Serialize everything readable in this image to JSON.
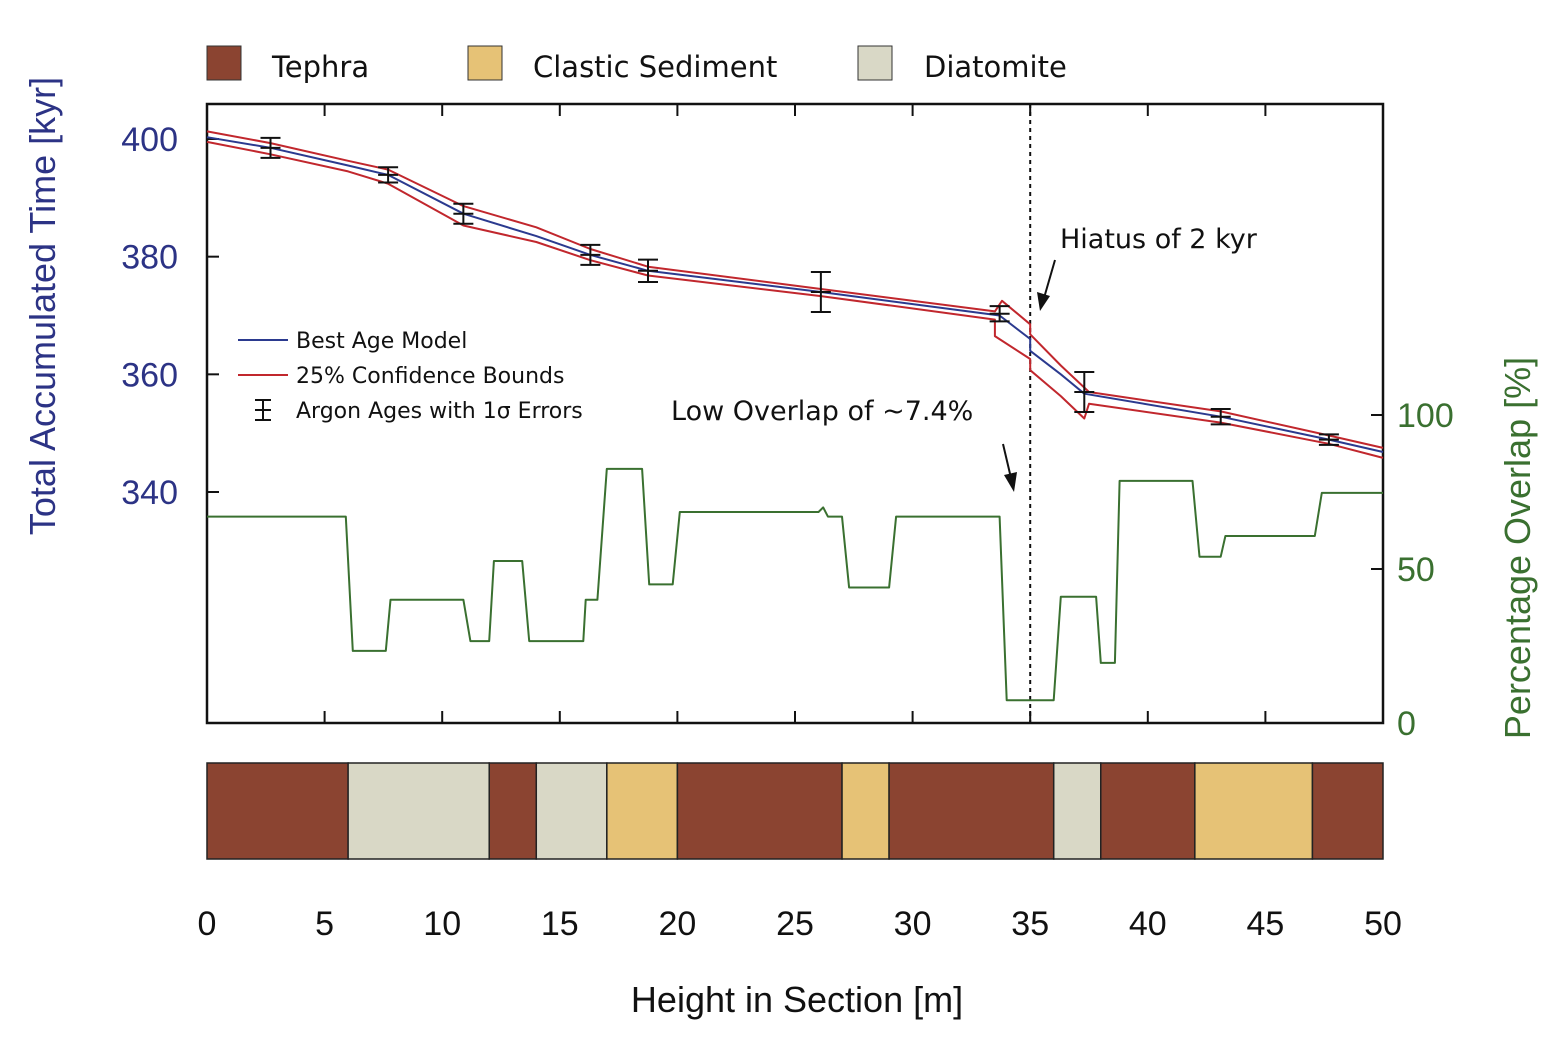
{
  "chart_data": {
    "type": "line",
    "title": "",
    "xlabel": "Height in Section [m]",
    "ylabel_left": "Total Accumulated Time [kyr]",
    "ylabel_right": "Percentage Overlap [%]",
    "xlim": [
      0,
      50
    ],
    "ylim_left": [
      326.5,
      405.5
    ],
    "ylim_right": [
      0,
      200
    ],
    "x_ticks": [
      0,
      5,
      10,
      15,
      20,
      25,
      30,
      35,
      40,
      45,
      50
    ],
    "x_tick_labels": [
      "0",
      "5",
      "10",
      "15",
      "20",
      "25",
      "30",
      "35",
      "40",
      "45",
      "50"
    ],
    "y_left_ticks": [
      400,
      380,
      360,
      340
    ],
    "y_left_tick_labels": [
      "400",
      "380",
      "360",
      "340"
    ],
    "y_right_ticks": [
      0,
      50,
      100
    ],
    "y_right_tick_labels": [
      "0",
      "50",
      "100"
    ],
    "grid": false,
    "colors": {
      "best_model": "#2b3a8f",
      "bounds": "#c1272d",
      "errorbars": "#111111",
      "overlap": "#3a7030",
      "left_axis": "#2c3385",
      "right_axis": "#3a7030",
      "tephra": "#8b4431",
      "clastic": "#e6c276",
      "diatomite": "#d9d8c6"
    },
    "legend": {
      "placement": "middle-left",
      "entries": [
        {
          "label": "Best Age Model",
          "kind": "line",
          "color_key": "best_model"
        },
        {
          "label": "25% Confidence Bounds",
          "kind": "line",
          "color_key": "bounds"
        },
        {
          "label": "Argon Ages with 1σ Errors",
          "kind": "errorbar",
          "color_key": "errorbars"
        }
      ]
    },
    "series": [
      {
        "name": "Best Age Model",
        "axis": "left",
        "x": [
          0,
          2.7,
          6,
          7.7,
          10.9,
          14,
          16.3,
          18.75,
          26.1,
          33.7,
          35,
          35,
          36.3,
          37.3,
          43.1,
          47.7,
          50
        ],
        "y": [
          400.3,
          398.5,
          395.5,
          393.9,
          387.3,
          383.5,
          380.3,
          377.6,
          374.0,
          370.0,
          366.0,
          364.0,
          360.0,
          356.7,
          352.8,
          348.9,
          346.8
        ]
      },
      {
        "name": "25% Confidence Bounds (upper)",
        "axis": "left",
        "x": [
          0,
          2.7,
          6,
          7.7,
          10.9,
          14,
          16.3,
          18.75,
          26.1,
          33.5,
          33.8,
          35,
          35,
          36.3,
          37.5,
          43.1,
          47.7,
          50
        ],
        "y": [
          401.3,
          399.3,
          396.3,
          394.8,
          388.6,
          385,
          381.3,
          378.3,
          374.5,
          370.7,
          372.5,
          368.5,
          366.8,
          361.5,
          357,
          353.7,
          349.6,
          347.5
        ]
      },
      {
        "name": "25% Confidence Bounds (lower)",
        "axis": "left",
        "x": [
          0,
          2.7,
          6,
          7.7,
          10.9,
          14,
          16.3,
          18.75,
          26.1,
          33.5,
          33.5,
          35,
          35,
          36.3,
          37.3,
          37.5,
          43.1,
          47.7,
          50
        ],
        "y": [
          399.5,
          397.4,
          394.5,
          392.4,
          385.3,
          382.5,
          379.4,
          376.8,
          373.3,
          369.3,
          366.5,
          362.6,
          360.7,
          356.3,
          352.5,
          355.0,
          351.8,
          348.2,
          345.8
        ]
      },
      {
        "name": "Percentage Overlap",
        "axis": "right",
        "type": "step",
        "x": [
          0,
          5.9,
          6.2,
          7.6,
          7.8,
          10.9,
          11.2,
          12.0,
          12.2,
          13.4,
          13.7,
          16.0,
          16.1,
          16.6,
          17.0,
          18.5,
          18.8,
          19.8,
          20.1,
          26.0,
          26.2,
          26.4,
          27.0,
          27.3,
          29.0,
          29.3,
          33.7,
          34.0,
          36.0,
          36.3,
          37.8,
          38.0,
          38.6,
          38.8,
          41.9,
          42.2,
          43.1,
          43.3,
          47.1,
          47.4,
          50
        ],
        "y": [
          67,
          67,
          23.4,
          23.4,
          40,
          40,
          26.6,
          26.6,
          52.6,
          52.6,
          26.6,
          26.6,
          40,
          40,
          82.5,
          82.5,
          45,
          45,
          68.5,
          68.5,
          70,
          67,
          67,
          44,
          44,
          67,
          67,
          7.4,
          7.4,
          41,
          41,
          19.5,
          19.5,
          78.6,
          78.6,
          54,
          54,
          60.7,
          60.7,
          74.7,
          74.7
        ]
      }
    ],
    "argon_ages": [
      {
        "x": 2.7,
        "y": 398.5,
        "err": 1.7
      },
      {
        "x": 7.7,
        "y": 393.9,
        "err": 1.3
      },
      {
        "x": 10.9,
        "y": 387.3,
        "err": 1.7
      },
      {
        "x": 16.3,
        "y": 380.3,
        "err": 1.7
      },
      {
        "x": 18.75,
        "y": 377.6,
        "err": 1.9
      },
      {
        "x": 26.1,
        "y": 374.0,
        "err": 3.4
      },
      {
        "x": 33.7,
        "y": 370.3,
        "err": 1.3
      },
      {
        "x": 37.3,
        "y": 357.0,
        "err": 3.4
      },
      {
        "x": 43.1,
        "y": 352.8,
        "err": 1.3
      },
      {
        "x": 47.7,
        "y": 348.9,
        "err": 0.9
      }
    ],
    "hiatus_line_x": 35,
    "annotations": [
      {
        "text": "Hiatus of 2 kyr",
        "target": {
          "x": 35.3,
          "y": 369.5
        }
      },
      {
        "text": "Low Overlap of ~7.4%",
        "target": {
          "x": 34.3,
          "y": 75
        }
      }
    ],
    "lithology": {
      "legend": [
        {
          "label": "Tephra",
          "key": "tephra"
        },
        {
          "label": "Clastic Sediment",
          "key": "clastic"
        },
        {
          "label": "Diatomite",
          "key": "diatomite"
        }
      ],
      "units": [
        {
          "from": 0,
          "to": 6,
          "type": "tephra"
        },
        {
          "from": 6,
          "to": 12,
          "type": "diatomite"
        },
        {
          "from": 12,
          "to": 14,
          "type": "tephra"
        },
        {
          "from": 14,
          "to": 17,
          "type": "diatomite"
        },
        {
          "from": 17,
          "to": 20,
          "type": "clastic"
        },
        {
          "from": 20,
          "to": 27,
          "type": "tephra"
        },
        {
          "from": 27,
          "to": 29,
          "type": "clastic"
        },
        {
          "from": 29,
          "to": 36,
          "type": "tephra"
        },
        {
          "from": 36,
          "to": 38,
          "type": "diatomite"
        },
        {
          "from": 38,
          "to": 42,
          "type": "tephra"
        },
        {
          "from": 42,
          "to": 47,
          "type": "clastic"
        },
        {
          "from": 47,
          "to": 50,
          "type": "tephra"
        }
      ]
    }
  }
}
